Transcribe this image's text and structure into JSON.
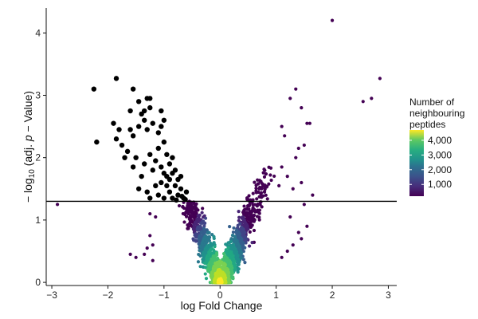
{
  "chart_data": {
    "type": "scatter",
    "title": "",
    "xlabel": "log Fold Change",
    "ylabel": {
      "prefix": "− log",
      "subscript": "10",
      "mid": " (adj. ",
      "italic": "p",
      "suffix": " − Value)"
    },
    "xlim": [
      -3.1,
      3.15
    ],
    "ylim": [
      -0.05,
      4.4
    ],
    "x_ticks": [
      -3,
      -2,
      -1,
      0,
      1,
      2,
      3
    ],
    "x_tick_labels": [
      "−3",
      "−2",
      "−1",
      "0",
      "1",
      "2",
      "3"
    ],
    "y_ticks": [
      0,
      1,
      2,
      3,
      4
    ],
    "y_tick_labels": [
      "0",
      "1",
      "2",
      "3",
      "4"
    ],
    "grid": false,
    "threshold_line": {
      "y": 1.3,
      "color": "#000000"
    },
    "legend": {
      "title": [
        "Number of",
        "neighbouring",
        "peptides"
      ],
      "placement": "right",
      "colormap": "viridis",
      "range": [
        200,
        4700
      ],
      "ticks": [
        1000,
        2000,
        3000,
        4000
      ],
      "tick_labels": [
        "1,000",
        "2,000",
        "3,000",
        "4,000"
      ]
    },
    "significant_color": "#000000",
    "significant_points": [
      [
        -2.25,
        3.1
      ],
      [
        -1.85,
        3.27
      ],
      [
        -1.55,
        3.1
      ],
      [
        -1.3,
        2.95
      ],
      [
        -1.25,
        2.95
      ],
      [
        -1.45,
        2.9
      ],
      [
        -1.05,
        2.75
      ],
      [
        -1.6,
        2.75
      ],
      [
        -1.4,
        2.7
      ],
      [
        -1.35,
        2.75
      ],
      [
        -1.25,
        2.8
      ],
      [
        -2.2,
        2.25
      ],
      [
        -1.9,
        2.55
      ],
      [
        -1.85,
        2.3
      ],
      [
        -1.8,
        2.45
      ],
      [
        -1.75,
        2.2
      ],
      [
        -1.6,
        2.45
      ],
      [
        -1.55,
        2.35
      ],
      [
        -1.45,
        2.5
      ],
      [
        -1.35,
        2.6
      ],
      [
        -1.3,
        2.45
      ],
      [
        -1.2,
        2.55
      ],
      [
        -1.1,
        2.4
      ],
      [
        -1.05,
        2.5
      ],
      [
        -1.0,
        2.6
      ],
      [
        -1.7,
        2.0
      ],
      [
        -1.65,
        2.1
      ],
      [
        -1.55,
        1.85
      ],
      [
        -1.5,
        2.0
      ],
      [
        -1.4,
        1.7
      ],
      [
        -1.35,
        1.9
      ],
      [
        -1.25,
        2.05
      ],
      [
        -1.2,
        1.8
      ],
      [
        -1.15,
        1.95
      ],
      [
        -1.1,
        2.15
      ],
      [
        -1.05,
        1.85
      ],
      [
        -1.0,
        2.25
      ],
      [
        -0.95,
        2.05
      ],
      [
        -0.9,
        1.9
      ],
      [
        -0.85,
        2.0
      ],
      [
        -0.8,
        1.8
      ],
      [
        -0.75,
        1.65
      ],
      [
        -1.45,
        1.5
      ],
      [
        -1.3,
        1.45
      ],
      [
        -1.25,
        1.35
      ],
      [
        -1.15,
        1.55
      ],
      [
        -1.1,
        1.4
      ],
      [
        -1.05,
        1.6
      ],
      [
        -1.0,
        1.35
      ],
      [
        -0.95,
        1.7
      ],
      [
        -0.9,
        1.45
      ],
      [
        -0.85,
        1.35
      ],
      [
        -0.8,
        1.55
      ],
      [
        -0.75,
        1.4
      ],
      [
        -0.7,
        1.5
      ],
      [
        -0.65,
        1.35
      ],
      [
        -0.6,
        1.45
      ],
      [
        -0.95,
        1.55
      ],
      [
        -0.85,
        1.75
      ],
      [
        -0.7,
        1.7
      ],
      [
        -1.0,
        1.75
      ],
      [
        -0.9,
        1.65
      ],
      [
        -0.78,
        1.32
      ],
      [
        -0.68,
        1.38
      ],
      [
        -0.62,
        1.33
      ]
    ],
    "scattered_points": [
      [
        -2.9,
        1.25
      ],
      [
        -1.6,
        0.45
      ],
      [
        -1.5,
        0.4
      ],
      [
        -1.2,
        0.6
      ],
      [
        -1.15,
        1.05
      ],
      [
        -1.25,
        0.75
      ],
      [
        -1.3,
        0.55
      ],
      [
        -1.2,
        0.35
      ],
      [
        -1.35,
        0.45
      ],
      [
        -1.25,
        1.1
      ],
      [
        1.65,
        1.4
      ],
      [
        1.35,
        3.1
      ],
      [
        1.25,
        2.95
      ],
      [
        1.45,
        2.8
      ],
      [
        1.5,
        2.2
      ],
      [
        1.4,
        2.15
      ],
      [
        1.55,
        2.55
      ],
      [
        1.6,
        2.55
      ],
      [
        1.1,
        2.5
      ],
      [
        1.15,
        2.35
      ],
      [
        1.35,
        2.0
      ],
      [
        1.45,
        1.6
      ],
      [
        1.5,
        1.25
      ],
      [
        1.3,
        1.5
      ],
      [
        1.45,
        0.7
      ],
      [
        1.55,
        0.9
      ],
      [
        1.25,
        1.05
      ],
      [
        1.4,
        0.8
      ],
      [
        2.0,
        4.2
      ],
      [
        2.85,
        3.27
      ],
      [
        2.55,
        2.9
      ],
      [
        2.7,
        2.95
      ],
      [
        1.1,
        1.85
      ],
      [
        1.2,
        1.7
      ],
      [
        1.05,
        1.55
      ],
      [
        1.3,
        0.6
      ],
      [
        1.2,
        0.5
      ],
      [
        1.1,
        0.4
      ]
    ]
  }
}
